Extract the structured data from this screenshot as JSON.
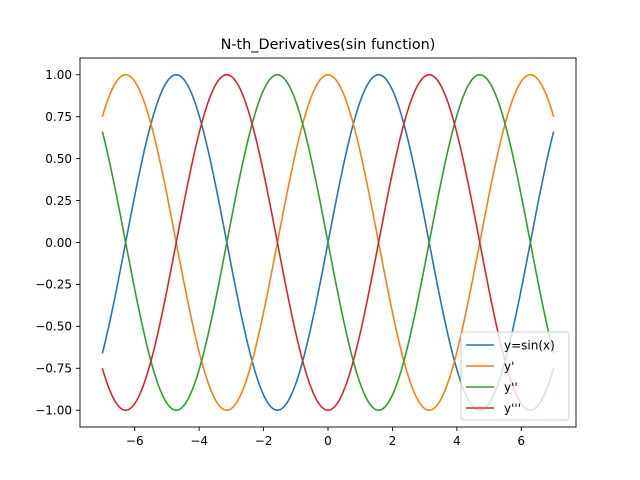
{
  "chart_data": {
    "type": "line",
    "title": "N-th_Derivatives(sin function)",
    "xlabel": "",
    "ylabel": "",
    "xlim": [
      -7.7,
      7.7
    ],
    "ylim": [
      -1.1,
      1.1
    ],
    "x_domain": [
      -7,
      7
    ],
    "xticks": [
      -6,
      -4,
      -2,
      0,
      2,
      4,
      6
    ],
    "xtick_labels": [
      "−6",
      "−4",
      "−2",
      "0",
      "2",
      "4",
      "6"
    ],
    "yticks": [
      -1.0,
      -0.75,
      -0.5,
      -0.25,
      0.0,
      0.25,
      0.5,
      0.75,
      1.0
    ],
    "ytick_labels": [
      "−1.00",
      "−0.75",
      "−0.50",
      "−0.25",
      "0.00",
      "0.25",
      "0.50",
      "0.75",
      "1.00"
    ],
    "grid": false,
    "legend_position": "lower-right",
    "series": [
      {
        "name": "y=sin(x)",
        "function": "sin(x)",
        "color": "#1f77b4"
      },
      {
        "name": "y'",
        "function": "cos(x)",
        "color": "#ff7f0e"
      },
      {
        "name": "y''",
        "function": "-sin(x)",
        "color": "#2ca02c"
      },
      {
        "name": "y'''",
        "function": "-cos(x)",
        "color": "#d62728"
      }
    ]
  }
}
